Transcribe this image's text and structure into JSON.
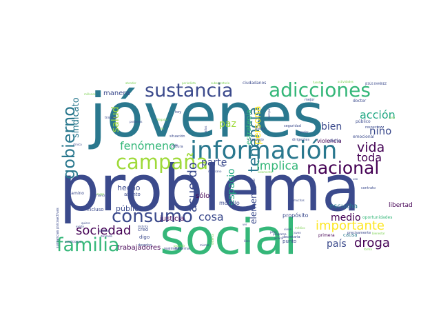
{
  "palette": {
    "background": "#ffffff",
    "colors": [
      "#3b4a8c",
      "#2a788e",
      "#22a884",
      "#35b779",
      "#9fda3a",
      "#fde725",
      "#440154",
      "#31688e",
      "#7ad151"
    ]
  },
  "words": [
    {
      "text": "problema",
      "size": 1.0,
      "color": "#3b4a8c",
      "rotate": false
    },
    {
      "text": "jóvenes",
      "size": 0.95,
      "color": "#2a788e",
      "rotate": false
    },
    {
      "text": "social",
      "size": 0.72,
      "color": "#35b779",
      "rotate": false
    },
    {
      "text": "información",
      "size": 0.42,
      "color": "#2a788e",
      "rotate": false
    },
    {
      "text": "sustancia",
      "size": 0.34,
      "color": "#3b4a8c",
      "rotate": false
    },
    {
      "text": "adicciones",
      "size": 0.34,
      "color": "#35b779",
      "rotate": false
    },
    {
      "text": "campaña",
      "size": 0.33,
      "color": "#9fda3a",
      "rotate": false
    },
    {
      "text": "nacional",
      "size": 0.32,
      "color": "#440154",
      "rotate": false
    },
    {
      "text": "consumo",
      "size": 0.31,
      "color": "#3b4a8c",
      "rotate": false
    },
    {
      "text": "familia",
      "size": 0.3,
      "color": "#35b779",
      "rotate": false
    },
    {
      "text": "gobierno",
      "size": 0.29,
      "color": "#2a788e",
      "rotate": true
    },
    {
      "text": "tenencia",
      "size": 0.25,
      "color": "#2a788e",
      "rotate": true
    },
    {
      "text": "importante",
      "size": 0.24,
      "color": "#fde725",
      "rotate": false
    },
    {
      "text": "vida",
      "size": 0.23,
      "color": "#440154",
      "rotate": false
    },
    {
      "text": "sociedad",
      "size": 0.22,
      "color": "#440154",
      "rotate": false
    },
    {
      "text": "droga",
      "size": 0.22,
      "color": "#440154",
      "rotate": false
    },
    {
      "text": "acuerdo",
      "size": 0.22,
      "color": "#3b4a8c",
      "rotate": true
    },
    {
      "text": "implica",
      "size": 0.2,
      "color": "#35b779",
      "rotate": false
    },
    {
      "text": "toda",
      "size": 0.19,
      "color": "#440154",
      "rotate": false
    },
    {
      "text": "cosa",
      "size": 0.19,
      "color": "#3b4a8c",
      "rotate": false
    },
    {
      "text": "fenómeno",
      "size": 0.19,
      "color": "#35b779",
      "rotate": false
    },
    {
      "text": "acción",
      "size": 0.18,
      "color": "#22a884",
      "rotate": false
    },
    {
      "text": "persona",
      "size": 0.18,
      "color": "#fde725",
      "rotate": true
    },
    {
      "text": "espacio",
      "size": 0.17,
      "color": "#22a884",
      "rotate": true
    },
    {
      "text": "salud",
      "size": 0.17,
      "color": "#9fda3a",
      "rotate": true
    },
    {
      "text": "sindicato",
      "size": 0.17,
      "color": "#2a788e",
      "rotate": true
    },
    {
      "text": "niño",
      "size": 0.17,
      "color": "#3b4a8c",
      "rotate": false
    },
    {
      "text": "país",
      "size": 0.16,
      "color": "#3b4a8c",
      "rotate": false
    },
    {
      "text": "bien",
      "size": 0.16,
      "color": "#3b4a8c",
      "rotate": false
    },
    {
      "text": "medio",
      "size": 0.16,
      "color": "#440154",
      "rotate": false
    },
    {
      "text": "paz",
      "size": 0.16,
      "color": "#9fda3a",
      "rotate": false
    },
    {
      "text": "parte",
      "size": 0.16,
      "color": "#3b4a8c",
      "rotate": false
    },
    {
      "text": "elemento",
      "size": 0.14,
      "color": "#3b4a8c",
      "rotate": true
    },
    {
      "text": "manera",
      "size": 0.12,
      "color": "#3b4a8c",
      "rotate": false
    },
    {
      "text": "hecho",
      "size": 0.12,
      "color": "#3b4a8c",
      "rotate": false
    },
    {
      "text": "pública",
      "size": 0.12,
      "color": "#3b4a8c",
      "rotate": false
    },
    {
      "text": "trabajadores",
      "size": 0.12,
      "color": "#440154",
      "rotate": false
    },
    {
      "text": "estrategia",
      "size": 0.12,
      "color": "#35b779",
      "rotate": true
    },
    {
      "text": "justicia",
      "size": 0.11,
      "color": "#440154",
      "rotate": false
    },
    {
      "text": "sólo",
      "size": 0.11,
      "color": "#440154",
      "rotate": false
    },
    {
      "text": "escucha",
      "size": 0.11,
      "color": "#2a788e",
      "rotate": false
    },
    {
      "text": "libertad",
      "size": 0.1,
      "color": "#440154",
      "rotate": false
    },
    {
      "text": "propósito",
      "size": 0.09,
      "color": "#3b4a8c",
      "rotate": false
    },
    {
      "text": "violencia",
      "size": 0.09,
      "color": "#440154",
      "rotate": false
    },
    {
      "text": "modelo",
      "size": 0.08,
      "color": "#3b4a8c",
      "rotate": false
    },
    {
      "text": "incluso",
      "size": 0.08,
      "color": "#3b4a8c",
      "rotate": false
    },
    {
      "text": "creo",
      "size": 0.08,
      "color": "#3b4a8c",
      "rotate": false
    },
    {
      "text": "digo",
      "size": 0.08,
      "color": "#3b4a8c",
      "rotate": false
    },
    {
      "text": "asunto",
      "size": 0.07,
      "color": "#3b4a8c",
      "rotate": false
    },
    {
      "text": "ciudadanos",
      "size": 0.07,
      "color": "#3b4a8c",
      "rotate": false
    },
    {
      "text": "oportunidades",
      "size": 0.07,
      "color": "#35b779",
      "rotate": false
    },
    {
      "text": "causa",
      "size": 0.07,
      "color": "#2a788e",
      "rotate": false
    },
    {
      "text": "punto",
      "size": 0.07,
      "color": "#3b4a8c",
      "rotate": false
    },
    {
      "text": "primera",
      "size": 0.07,
      "color": "#440154",
      "rotate": false
    },
    {
      "text": "dicho",
      "size": 0.06,
      "color": "#3b4a8c",
      "rotate": false
    },
    {
      "text": "doctor",
      "size": 0.06,
      "color": "#3b4a8c",
      "rotate": false
    },
    {
      "text": "público",
      "size": 0.06,
      "color": "#3b4a8c",
      "rotate": false
    },
    {
      "text": "emocional",
      "size": 0.06,
      "color": "#3b4a8c",
      "rotate": false
    },
    {
      "text": "situación",
      "size": 0.06,
      "color": "#3b4a8c",
      "rotate": false
    },
    {
      "text": "trabajo",
      "size": 0.06,
      "color": "#3b4a8c",
      "rotate": false
    },
    {
      "text": "cultura",
      "size": 0.06,
      "color": "#3b4a8c",
      "rotate": false
    },
    {
      "text": "derecho",
      "size": 0.06,
      "color": "#3b4a8c",
      "rotate": false
    },
    {
      "text": "contrato",
      "size": 0.06,
      "color": "#3b4a8c",
      "rotate": false
    },
    {
      "text": "camino",
      "size": 0.06,
      "color": "#3b4a8c",
      "rotate": false
    },
    {
      "text": "hoy",
      "size": 0.06,
      "color": "#3b4a8c",
      "rotate": false
    },
    {
      "text": "mano",
      "size": 0.06,
      "color": "#3b4a8c",
      "rotate": false
    },
    {
      "text": "realmente",
      "size": 0.06,
      "color": "#3b4a8c",
      "rotate": false
    },
    {
      "text": "complejo",
      "size": 0.06,
      "color": "#3b4a8c",
      "rotate": false
    },
    {
      "text": "ayuda",
      "size": 0.06,
      "color": "#3b4a8c",
      "rotate": false
    },
    {
      "text": "seguridad",
      "size": 0.05,
      "color": "#3b4a8c",
      "rotate": false
    },
    {
      "text": "dirigentes",
      "size": 0.05,
      "color": "#3b4a8c",
      "rotate": false
    },
    {
      "text": "mejor",
      "size": 0.05,
      "color": "#3b4a8c",
      "rotate": false
    },
    {
      "text": "respecto",
      "size": 0.05,
      "color": "#3b4a8c",
      "rotate": false
    },
    {
      "text": "precisamente",
      "size": 0.05,
      "color": "#3b4a8c",
      "rotate": false
    },
    {
      "text": "decretaria",
      "size": 0.05,
      "color": "#3b4a8c",
      "rotate": false
    },
    {
      "text": "Reforma",
      "size": 0.05,
      "color": "#3b4a8c",
      "rotate": false
    },
    {
      "text": "JESÚS RAMÍREZ",
      "size": 0.05,
      "color": "#3b4a8c",
      "rotate": false
    },
    {
      "text": "sustancias psicoactivas",
      "size": 0.05,
      "color": "#3b4a8c",
      "rotate": true
    },
    {
      "text": "condiciones",
      "size": 0.05,
      "color": "#3b4a8c",
      "rotate": false
    },
    {
      "text": "existe",
      "size": 0.05,
      "color": "#3b4a8c",
      "rotate": false
    },
    {
      "text": "quiero",
      "size": 0.05,
      "color": "#3b4a8c",
      "rotate": false
    },
    {
      "text": "podemos",
      "size": 0.05,
      "color": "#3b4a8c",
      "rotate": false
    },
    {
      "text": "periodista",
      "size": 0.05,
      "color": "#7ad151",
      "rotate": false
    },
    {
      "text": "subsecretario",
      "size": 0.05,
      "color": "#7ad151",
      "rotate": false
    },
    {
      "text": "actividades",
      "size": 0.05,
      "color": "#7ad151",
      "rotate": false
    },
    {
      "text": "clínica",
      "size": 0.05,
      "color": "#3b4a8c",
      "rotate": false
    },
    {
      "text": "política",
      "size": 0.05,
      "color": "#3b4a8c",
      "rotate": false
    },
    {
      "text": "diciendo",
      "size": 0.05,
      "color": "#3b4a8c",
      "rotate": false
    },
    {
      "text": "distinta",
      "size": 0.05,
      "color": "#3b4a8c",
      "rotate": false
    },
    {
      "text": "programa",
      "size": 0.05,
      "color": "#3b4a8c",
      "rotate": false
    },
    {
      "text": "aclarar",
      "size": 0.05,
      "color": "#3b4a8c",
      "rotate": false
    },
    {
      "text": "libre",
      "size": 0.05,
      "color": "#3b4a8c",
      "rotate": false
    },
    {
      "text": "joven",
      "size": 0.05,
      "color": "#3b4a8c",
      "rotate": false
    },
    {
      "text": "viene",
      "size": 0.05,
      "color": "#3b4a8c",
      "rotate": false
    },
    {
      "text": "peso",
      "size": 0.05,
      "color": "#3b4a8c",
      "rotate": false
    },
    {
      "text": "médico",
      "size": 0.05,
      "color": "#7ad151",
      "rotate": false
    },
    {
      "text": "bienestar",
      "size": 0.05,
      "color": "#7ad151",
      "rotate": false
    },
    {
      "text": "forma",
      "size": 0.05,
      "color": "#7ad151",
      "rotate": false
    },
    {
      "text": "provenir",
      "size": 0.05,
      "color": "#7ad151",
      "rotate": false
    },
    {
      "text": "mismo",
      "size": 0.05,
      "color": "#3b4a8c",
      "rotate": false
    },
    {
      "text": "mexicano",
      "size": 0.05,
      "color": "#3b4a8c",
      "rotate": false
    },
    {
      "text": "solamente",
      "size": 0.05,
      "color": "#7ad151",
      "rotate": false
    },
    {
      "text": "poder",
      "size": 0.05,
      "color": "#3b4a8c",
      "rotate": false
    },
    {
      "text": "tiempo",
      "size": 0.05,
      "color": "#3b4a8c",
      "rotate": true
    },
    {
      "text": "años",
      "size": 0.05,
      "color": "#3b4a8c",
      "rotate": true
    },
    {
      "text": "familiar",
      "size": 0.05,
      "color": "#3b4a8c",
      "rotate": true
    },
    {
      "text": "muchas",
      "size": 0.05,
      "color": "#3b4a8c",
      "rotate": false
    },
    {
      "text": "uso",
      "size": 0.05,
      "color": "#3b4a8c",
      "rotate": false
    },
    {
      "text": "ver",
      "size": 0.05,
      "color": "#3b4a8c",
      "rotate": false
    },
    {
      "text": "dar",
      "size": 0.05,
      "color": "#3b4a8c",
      "rotate": false
    },
    {
      "text": "atender",
      "size": 0.05,
      "color": "#7ad151",
      "rotate": false
    },
    {
      "text": "millones",
      "size": 0.05,
      "color": "#7ad151",
      "rotate": false
    },
    {
      "text": "fuente",
      "size": 0.05,
      "color": "#7ad151",
      "rotate": false
    },
    {
      "text": "sido",
      "size": 0.05,
      "color": "#3b4a8c",
      "rotate": false
    },
    {
      "text": "caso",
      "size": 0.05,
      "color": "#7ad151",
      "rotate": false
    },
    {
      "text": "cargo",
      "size": 0.05,
      "color": "#7ad151",
      "rotate": false
    },
    {
      "text": "llegado",
      "size": 0.05,
      "color": "#7ad151",
      "rotate": false
    },
    {
      "text": "sistema",
      "size": 0.05,
      "color": "#7ad151",
      "rotate": true
    },
    {
      "text": "sin",
      "size": 0.05,
      "color": "#7ad151",
      "rotate": false
    }
  ]
}
